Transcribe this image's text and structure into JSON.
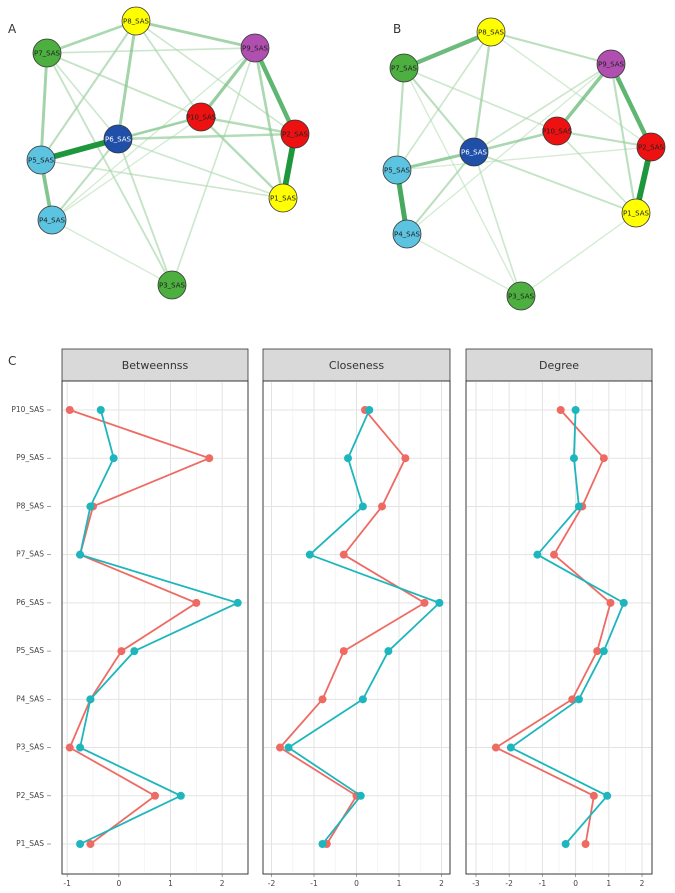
{
  "networks": [
    {
      "letter": "A",
      "nodes": [
        {
          "id": "P8_SAS",
          "label": "P8_SAS",
          "color": "#ffff00"
        },
        {
          "id": "P7_SAS",
          "label": "P7_SAS",
          "color": "#4caf3f"
        },
        {
          "id": "P9_SAS",
          "label": "P9_SAS",
          "color": "#b04fb0"
        },
        {
          "id": "P10_SAS",
          "label": "P10_SAS",
          "color": "#ee1111"
        },
        {
          "id": "P2_SAS",
          "label": "P2_SAS",
          "color": "#ee1111"
        },
        {
          "id": "P6_SAS",
          "label": "P6_SAS",
          "color": "#1f4fa8"
        },
        {
          "id": "P5_SAS",
          "label": "P5_SAS",
          "color": "#5cc3e0"
        },
        {
          "id": "P1_SAS",
          "label": "P1_SAS",
          "color": "#ffff00"
        },
        {
          "id": "P4_SAS",
          "label": "P4_SAS",
          "color": "#5cc3e0"
        },
        {
          "id": "P3_SAS",
          "label": "P3_SAS",
          "color": "#4caf3f"
        }
      ],
      "edges": [
        [
          "P5_SAS",
          "P6_SAS",
          1.0
        ],
        [
          "P2_SAS",
          "P1_SAS",
          1.0
        ],
        [
          "P9_SAS",
          "P2_SAS",
          0.75
        ],
        [
          "P5_SAS",
          "P4_SAS",
          0.6
        ],
        [
          "P7_SAS",
          "P5_SAS",
          0.45
        ],
        [
          "P7_SAS",
          "P8_SAS",
          0.4
        ],
        [
          "P8_SAS",
          "P9_SAS",
          0.45
        ],
        [
          "P8_SAS",
          "P6_SAS",
          0.45
        ],
        [
          "P10_SAS",
          "P9_SAS",
          0.5
        ],
        [
          "P10_SAS",
          "P6_SAS",
          0.4
        ],
        [
          "P10_SAS",
          "P2_SAS",
          0.35
        ],
        [
          "P10_SAS",
          "P1_SAS",
          0.35
        ],
        [
          "P6_SAS",
          "P2_SAS",
          0.35
        ],
        [
          "P6_SAS",
          "P4_SAS",
          0.3
        ],
        [
          "P8_SAS",
          "P5_SAS",
          0.3
        ],
        [
          "P9_SAS",
          "P1_SAS",
          0.4
        ],
        [
          "P7_SAS",
          "P10_SAS",
          0.25
        ],
        [
          "P7_SAS",
          "P9_SAS",
          0.2
        ],
        [
          "P8_SAS",
          "P10_SAS",
          0.25
        ],
        [
          "P6_SAS",
          "P3_SAS",
          0.25
        ],
        [
          "P7_SAS",
          "P3_SAS",
          0.25
        ],
        [
          "P9_SAS",
          "P3_SAS",
          0.2
        ],
        [
          "P5_SAS",
          "P1_SAS",
          0.2
        ],
        [
          "P4_SAS",
          "P3_SAS",
          0.15
        ],
        [
          "P8_SAS",
          "P2_SAS",
          0.2
        ],
        [
          "P6_SAS",
          "P1_SAS",
          0.2
        ],
        [
          "P9_SAS",
          "P4_SAS",
          0.15
        ],
        [
          "P7_SAS",
          "P6_SAS",
          0.2
        ],
        [
          "P10_SAS",
          "P5_SAS",
          0.2
        ],
        [
          "P10_SAS",
          "P4_SAS",
          0.15
        ]
      ]
    },
    {
      "letter": "B",
      "nodes": [
        {
          "id": "P8_SAS",
          "label": "P8_SAS",
          "color": "#ffff00"
        },
        {
          "id": "P7_SAS",
          "label": "P7_SAS",
          "color": "#4caf3f"
        },
        {
          "id": "P9_SAS",
          "label": "P9_SAS",
          "color": "#b04fb0"
        },
        {
          "id": "P10_SAS",
          "label": "P10_SAS",
          "color": "#ee1111"
        },
        {
          "id": "P2_SAS",
          "label": "P2_SAS",
          "color": "#ee1111"
        },
        {
          "id": "P6_SAS",
          "label": "P6_SAS",
          "color": "#1f4fa8"
        },
        {
          "id": "P5_SAS",
          "label": "P5_SAS",
          "color": "#5cc3e0"
        },
        {
          "id": "P1_SAS",
          "label": "P1_SAS",
          "color": "#ffff00"
        },
        {
          "id": "P4_SAS",
          "label": "P4_SAS",
          "color": "#5cc3e0"
        },
        {
          "id": "P3_SAS",
          "label": "P3_SAS",
          "color": "#4caf3f"
        }
      ],
      "edges": [
        [
          "P1_SAS",
          "P2_SAS",
          1.0
        ],
        [
          "P5_SAS",
          "P4_SAS",
          0.85
        ],
        [
          "P9_SAS",
          "P2_SAS",
          0.75
        ],
        [
          "P7_SAS",
          "P8_SAS",
          0.7
        ],
        [
          "P10_SAS",
          "P9_SAS",
          0.55
        ],
        [
          "P5_SAS",
          "P6_SAS",
          0.5
        ],
        [
          "P6_SAS",
          "P10_SAS",
          0.4
        ],
        [
          "P8_SAS",
          "P9_SAS",
          0.3
        ],
        [
          "P7_SAS",
          "P5_SAS",
          0.3
        ],
        [
          "P8_SAS",
          "P6_SAS",
          0.35
        ],
        [
          "P7_SAS",
          "P6_SAS",
          0.3
        ],
        [
          "P10_SAS",
          "P2_SAS",
          0.3
        ],
        [
          "P6_SAS",
          "P1_SAS",
          0.25
        ],
        [
          "P6_SAS",
          "P4_SAS",
          0.3
        ],
        [
          "P9_SAS",
          "P1_SAS",
          0.3
        ],
        [
          "P8_SAS",
          "P5_SAS",
          0.2
        ],
        [
          "P7_SAS",
          "P10_SAS",
          0.2
        ],
        [
          "P6_SAS",
          "P3_SAS",
          0.2
        ],
        [
          "P4_SAS",
          "P3_SAS",
          0.15
        ],
        [
          "P3_SAS",
          "P1_SAS",
          0.15
        ],
        [
          "P9_SAS",
          "P6_SAS",
          0.2
        ],
        [
          "P8_SAS",
          "P2_SAS",
          0.15
        ],
        [
          "P7_SAS",
          "P3_SAS",
          0.15
        ],
        [
          "P10_SAS",
          "P1_SAS",
          0.2
        ],
        [
          "P5_SAS",
          "P2_SAS",
          0.15
        ],
        [
          "P9_SAS",
          "P4_SAS",
          0.15
        ]
      ]
    }
  ],
  "chart_data": {
    "type": "line",
    "panel_letter": "C",
    "facets": [
      "Betweennss",
      "Closeness",
      "Degree"
    ],
    "y_categories": [
      "P1_SAS",
      "P2_SAS",
      "P3_SAS",
      "P4_SAS",
      "P5_SAS",
      "P6_SAS",
      "P7_SAS",
      "P8_SAS",
      "P9_SAS",
      "P10_SAS"
    ],
    "series_colors": [
      "#ee6b63",
      "#1db6bd"
    ],
    "grid": true,
    "legend": "none",
    "panels": [
      {
        "facet": "Betweennss",
        "xlim": [
          -1.1,
          2.5
        ],
        "xticks": [
          -1,
          0,
          1,
          2
        ],
        "series": [
          {
            "values": [
              -0.55,
              0.7,
              -0.95,
              -0.55,
              0.05,
              1.5,
              -0.75,
              -0.5,
              1.75,
              -0.95
            ]
          },
          {
            "values": [
              -0.75,
              1.2,
              -0.75,
              -0.55,
              0.3,
              2.3,
              -0.75,
              -0.55,
              -0.1,
              -0.35
            ]
          }
        ]
      },
      {
        "facet": "Closeness",
        "xlim": [
          -2.2,
          2.2
        ],
        "xticks": [
          -2,
          -1,
          0,
          1,
          2
        ],
        "series": [
          {
            "values": [
              -0.7,
              0.0,
              -1.8,
              -0.8,
              -0.3,
              1.6,
              -0.3,
              0.6,
              1.15,
              0.2
            ]
          },
          {
            "values": [
              -0.8,
              0.1,
              -1.6,
              0.15,
              0.75,
              1.95,
              -1.1,
              0.15,
              -0.2,
              0.3
            ]
          }
        ]
      },
      {
        "facet": "Degree",
        "xlim": [
          -3.3,
          2.3
        ],
        "xticks": [
          -3,
          -2,
          -1,
          0,
          1,
          2
        ],
        "series": [
          {
            "values": [
              0.3,
              0.55,
              -2.4,
              -0.1,
              0.65,
              1.05,
              -0.65,
              0.2,
              0.85,
              -0.45
            ]
          },
          {
            "values": [
              -0.3,
              0.95,
              -1.95,
              0.1,
              0.85,
              1.45,
              -1.15,
              0.1,
              -0.05,
              0.0
            ]
          }
        ]
      }
    ]
  }
}
